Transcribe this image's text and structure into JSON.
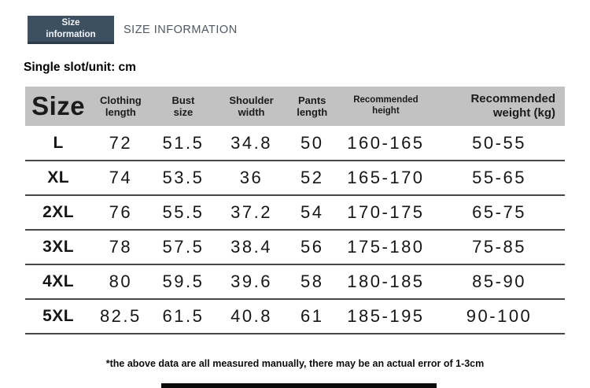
{
  "header": {
    "badge_text": "Size\ninformation",
    "section_title": "SIZE INFORMATION",
    "unit_label": "Single slot/unit: cm"
  },
  "colors": {
    "badge_bg": "#3c5062",
    "badge_edge": "#2b3b48",
    "table_header_bg": "#c2c2c2",
    "row_divider": "#474747",
    "section_title_text": "#4d5863",
    "bottom_bar": "#0a0a0a"
  },
  "table": {
    "columns": [
      {
        "key": "size",
        "label": "Size"
      },
      {
        "key": "clothing_length",
        "label": "Clothing\nlength"
      },
      {
        "key": "bust_size",
        "label": "Bust\nsize"
      },
      {
        "key": "shoulder_width",
        "label": "Shoulder\nwidth"
      },
      {
        "key": "pants_length",
        "label": "Pants\nlength"
      },
      {
        "key": "recommended_height",
        "label": "Recommended\nheight"
      },
      {
        "key": "recommended_weight",
        "label": "Recommended\nweight (kg)"
      }
    ],
    "rows": [
      {
        "size": "L",
        "clothing_length": "72",
        "bust_size": "51.5",
        "shoulder_width": "34.8",
        "pants_length": "50",
        "recommended_height": "160-165",
        "recommended_weight": "50-55"
      },
      {
        "size": "XL",
        "clothing_length": "74",
        "bust_size": "53.5",
        "shoulder_width": "36",
        "pants_length": "52",
        "recommended_height": "165-170",
        "recommended_weight": "55-65"
      },
      {
        "size": "2XL",
        "clothing_length": "76",
        "bust_size": "55.5",
        "shoulder_width": "37.2",
        "pants_length": "54",
        "recommended_height": "170-175",
        "recommended_weight": "65-75"
      },
      {
        "size": "3XL",
        "clothing_length": "78",
        "bust_size": "57.5",
        "shoulder_width": "38.4",
        "pants_length": "56",
        "recommended_height": "175-180",
        "recommended_weight": "75-85"
      },
      {
        "size": "4XL",
        "clothing_length": "80",
        "bust_size": "59.5",
        "shoulder_width": "39.6",
        "pants_length": "58",
        "recommended_height": "180-185",
        "recommended_weight": "85-90"
      },
      {
        "size": "5XL",
        "clothing_length": "82.5",
        "bust_size": "61.5",
        "shoulder_width": "40.8",
        "pants_length": "61",
        "recommended_height": "185-195",
        "recommended_weight": "90-100"
      }
    ]
  },
  "footnote": "*the above data are all measured manually, there may be an actual error of 1-3cm"
}
